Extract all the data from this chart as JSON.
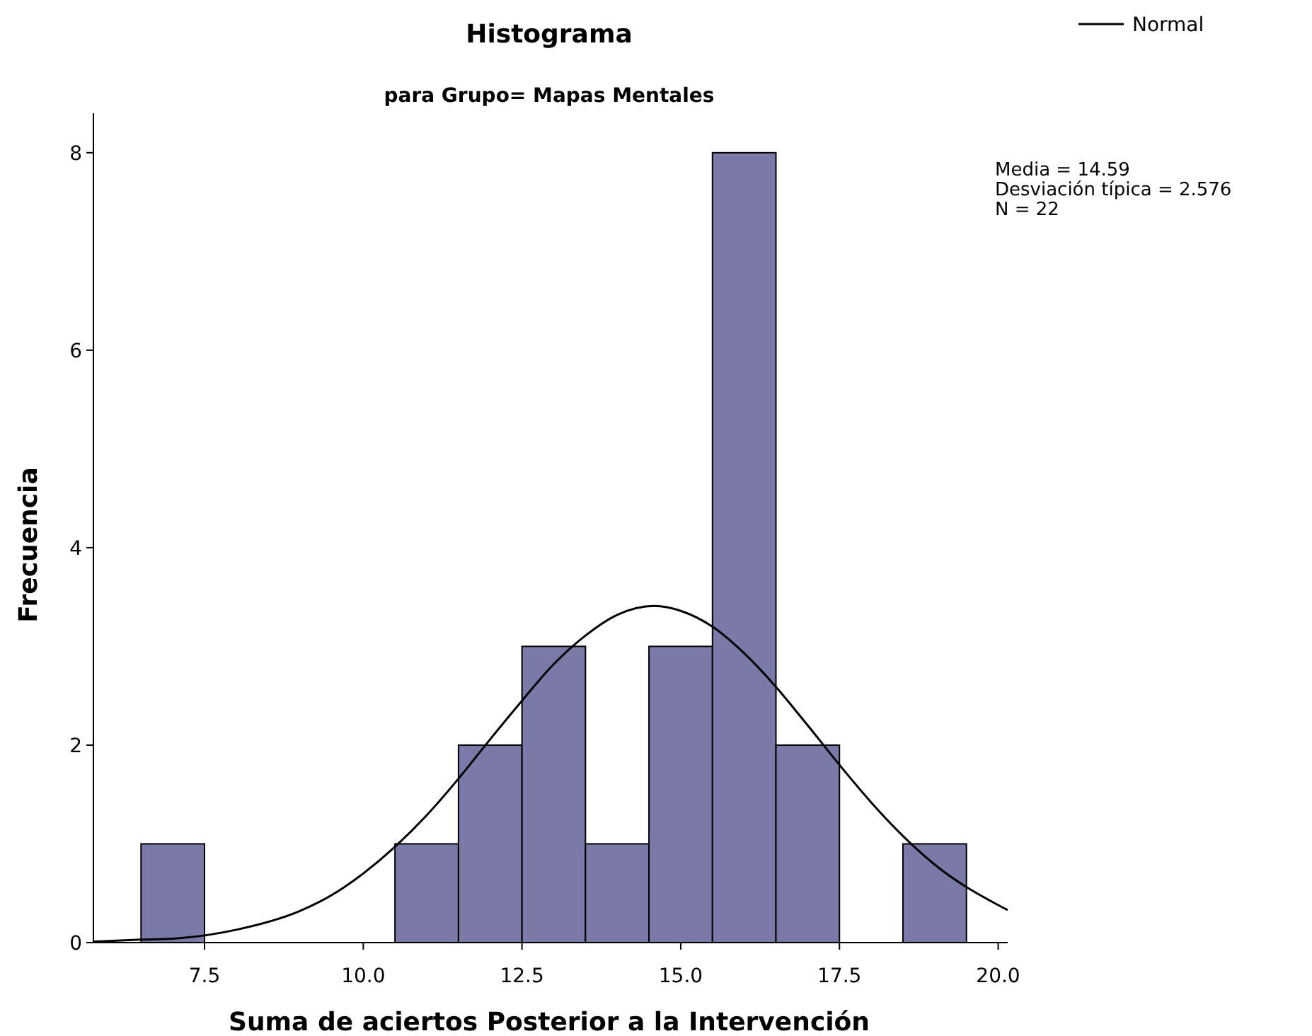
{
  "chart_data": {
    "type": "histogram",
    "title": "Histograma",
    "subtitle": "para Grupo= Mapas Mentales",
    "xlabel": "Suma de aciertos Posterior a la Intervención",
    "ylabel": "Frecuencia",
    "bins": [
      6.5,
      7.5,
      8.5,
      9.5,
      10.5,
      11.5,
      12.5,
      13.5,
      14.5,
      15.5,
      16.5,
      17.5,
      18.5,
      19.5
    ],
    "values": [
      1,
      0,
      0,
      0,
      1,
      2,
      3,
      1,
      3,
      8,
      2,
      0,
      1
    ],
    "color": "#7a7aa8",
    "series": [
      {
        "type": "line",
        "name": "Normal",
        "color": "#000000",
        "x": [
          5.75,
          6.5,
          7,
          8,
          9,
          9.5,
          10,
          10.5,
          11,
          11.5,
          12,
          12.5,
          13,
          13.5,
          14,
          14.59,
          15,
          15.5,
          16,
          16.5,
          17,
          17.5,
          18,
          18.5,
          19,
          20,
          20.15
        ],
        "values": [
          0.01,
          0.03,
          0.04,
          0.13,
          0.32,
          0.48,
          0.7,
          0.97,
          1.29,
          1.66,
          2.06,
          2.45,
          2.82,
          3.11,
          3.32,
          3.41,
          3.36,
          3.2,
          2.93,
          2.59,
          2.2,
          1.8,
          1.42,
          1.08,
          0.79,
          0.38,
          0.33
        ]
      }
    ],
    "annotations": [
      "Media = 14.59",
      "Desviación típica = 2.576",
      "N = 22"
    ],
    "xlim": [
      5.75,
      20.15
    ],
    "xticks": [
      7.5,
      {
        "value": 10,
        "label": "10.0"
      },
      12.5,
      {
        "value": 15,
        "label": "15.0"
      },
      17.5,
      {
        "value": 20,
        "label": "20.0"
      }
    ],
    "ylim": [
      0,
      8.4
    ],
    "yticks": [
      0,
      2,
      4,
      6,
      8
    ],
    "grid": false,
    "legend": "top right",
    "marker": "none",
    "line_style": "solid"
  }
}
